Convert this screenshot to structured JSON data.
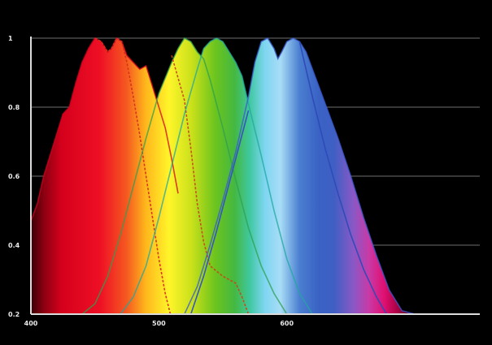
{
  "chart_data": {
    "type": "area",
    "title": "",
    "xlabel": "",
    "ylabel": "",
    "xlim": [
      400,
      740
    ],
    "ylim": [
      0.2,
      1.0
    ],
    "grid": true,
    "x_ticks": [
      {
        "value": 400,
        "label": "400"
      },
      {
        "value": 500,
        "label": "500"
      },
      {
        "value": 600,
        "label": "600"
      }
    ],
    "y_ticks": [
      {
        "value": 0.2,
        "label": "0.2"
      },
      {
        "value": 0.4,
        "label": "0.4"
      },
      {
        "value": 0.6,
        "label": "0.6"
      },
      {
        "value": 0.8,
        "label": "0.8"
      },
      {
        "value": 1.0,
        "label": "1"
      }
    ],
    "series": [
      {
        "color": "#d40020",
        "style": "filled",
        "points": [
          [
            400,
            0.47
          ],
          [
            405,
            0.52
          ],
          [
            410,
            0.6
          ],
          [
            415,
            0.66
          ],
          [
            420,
            0.72
          ],
          [
            425,
            0.78
          ],
          [
            430,
            0.8
          ],
          [
            435,
            0.87
          ],
          [
            440,
            0.93
          ],
          [
            445,
            0.97
          ],
          [
            450,
            1.0
          ],
          [
            455,
            0.99
          ],
          [
            460,
            0.96
          ],
          [
            463,
            0.97
          ],
          [
            467,
            1.0
          ],
          [
            471,
            0.99
          ],
          [
            475,
            0.95
          ],
          [
            480,
            0.93
          ],
          [
            485,
            0.91
          ],
          [
            490,
            0.92
          ],
          [
            495,
            0.86
          ],
          [
            500,
            0.8
          ],
          [
            505,
            0.74
          ],
          [
            510,
            0.65
          ],
          [
            515,
            0.55
          ]
        ]
      },
      {
        "color": "#d8301a",
        "style": "dashed",
        "points": [
          [
            450,
            1.0
          ],
          [
            455,
            0.99
          ],
          [
            460,
            0.96
          ],
          [
            463,
            0.97
          ],
          [
            467,
            1.0
          ],
          [
            471,
            0.99
          ],
          [
            475,
            0.93
          ],
          [
            480,
            0.83
          ],
          [
            485,
            0.72
          ],
          [
            490,
            0.6
          ],
          [
            495,
            0.48
          ],
          [
            500,
            0.36
          ],
          [
            505,
            0.26
          ],
          [
            509,
            0.2
          ]
        ]
      },
      {
        "color": "#2fa050",
        "style": "filled",
        "points": [
          [
            440,
            0.2
          ],
          [
            450,
            0.23
          ],
          [
            460,
            0.31
          ],
          [
            470,
            0.43
          ],
          [
            480,
            0.57
          ],
          [
            490,
            0.71
          ],
          [
            500,
            0.84
          ],
          [
            510,
            0.93
          ],
          [
            515,
            0.97
          ],
          [
            520,
            1.0
          ],
          [
            525,
            0.99
          ],
          [
            530,
            0.96
          ],
          [
            535,
            0.94
          ],
          [
            540,
            0.88
          ],
          [
            550,
            0.74
          ],
          [
            560,
            0.59
          ],
          [
            570,
            0.45
          ],
          [
            580,
            0.34
          ],
          [
            590,
            0.26
          ],
          [
            600,
            0.2
          ]
        ]
      },
      {
        "color": "#c84a1a",
        "style": "dashed",
        "points": [
          [
            510,
            0.95
          ],
          [
            520,
            0.82
          ],
          [
            525,
            0.68
          ],
          [
            530,
            0.52
          ],
          [
            535,
            0.41
          ],
          [
            540,
            0.34
          ],
          [
            550,
            0.31
          ],
          [
            560,
            0.29
          ],
          [
            565,
            0.25
          ],
          [
            570,
            0.2
          ]
        ]
      },
      {
        "color": "#20a8a0",
        "style": "filled",
        "points": [
          [
            470,
            0.2
          ],
          [
            480,
            0.25
          ],
          [
            490,
            0.34
          ],
          [
            500,
            0.48
          ],
          [
            510,
            0.63
          ],
          [
            520,
            0.78
          ],
          [
            530,
            0.91
          ],
          [
            535,
            0.97
          ],
          [
            540,
            0.99
          ],
          [
            545,
            1.0
          ],
          [
            550,
            0.99
          ],
          [
            555,
            0.96
          ],
          [
            560,
            0.93
          ],
          [
            565,
            0.89
          ],
          [
            570,
            0.81
          ],
          [
            580,
            0.66
          ],
          [
            590,
            0.5
          ],
          [
            600,
            0.36
          ],
          [
            610,
            0.26
          ],
          [
            620,
            0.2
          ]
        ]
      },
      {
        "color": "#3a5ad0",
        "style": "filled",
        "points": [
          [
            520,
            0.2
          ],
          [
            530,
            0.28
          ],
          [
            540,
            0.4
          ],
          [
            550,
            0.53
          ],
          [
            560,
            0.67
          ],
          [
            570,
            0.83
          ],
          [
            575,
            0.93
          ],
          [
            580,
            0.99
          ],
          [
            585,
            1.0
          ],
          [
            590,
            0.97
          ],
          [
            593,
            0.94
          ],
          [
            596,
            0.96
          ],
          [
            600,
            0.99
          ],
          [
            605,
            1.0
          ],
          [
            610,
            0.99
          ],
          [
            615,
            0.96
          ],
          [
            620,
            0.91
          ],
          [
            630,
            0.81
          ],
          [
            640,
            0.71
          ],
          [
            650,
            0.6
          ],
          [
            660,
            0.48
          ],
          [
            670,
            0.37
          ],
          [
            680,
            0.27
          ],
          [
            690,
            0.21
          ],
          [
            700,
            0.2
          ]
        ]
      },
      {
        "color": "#3050c8",
        "style": "line",
        "points": [
          [
            525,
            0.2
          ],
          [
            535,
            0.31
          ],
          [
            545,
            0.44
          ],
          [
            555,
            0.58
          ],
          [
            565,
            0.72
          ],
          [
            570,
            0.79
          ]
        ]
      },
      {
        "color": "#2e4ab8",
        "style": "line",
        "points": [
          [
            610,
            0.99
          ],
          [
            620,
            0.83
          ],
          [
            630,
            0.68
          ],
          [
            640,
            0.55
          ],
          [
            650,
            0.43
          ],
          [
            660,
            0.33
          ],
          [
            670,
            0.25
          ],
          [
            678,
            0.2
          ]
        ]
      }
    ]
  }
}
